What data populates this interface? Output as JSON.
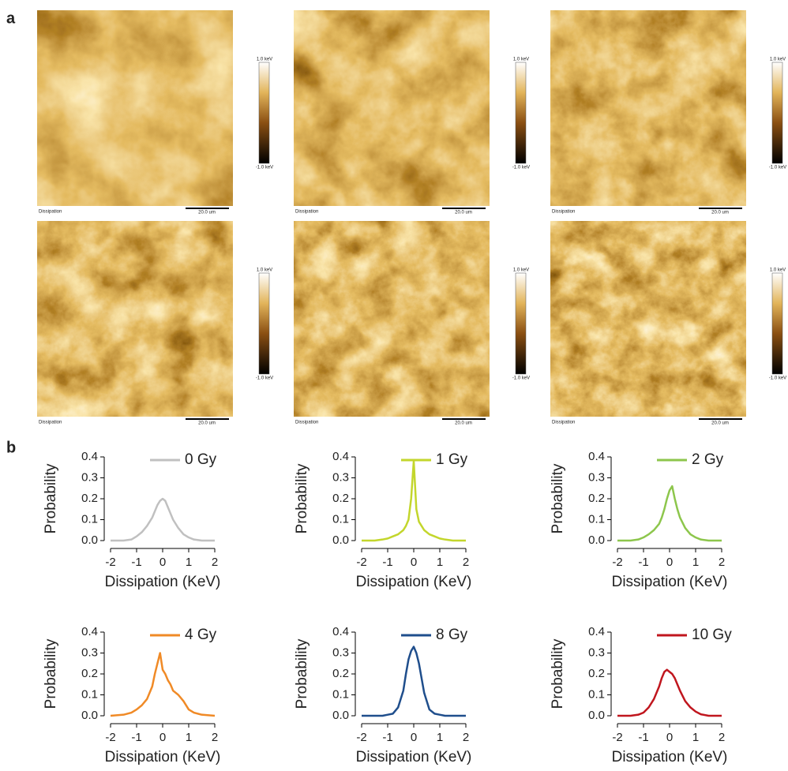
{
  "panel_labels": [
    "a",
    "b"
  ],
  "images": [
    {
      "caption": "Dissipation",
      "scale": "20.0 um",
      "colorbar_max": "1.0 keV",
      "colorbar_min": "-1.0 keV"
    },
    {
      "caption": "Dissipation",
      "scale": "20.0 um",
      "colorbar_max": "1.0 keV",
      "colorbar_min": "-1.0 keV"
    },
    {
      "caption": "Dissipation",
      "scale": "20.0 um",
      "colorbar_max": "1.0 keV",
      "colorbar_min": "-1.0 keV"
    },
    {
      "caption": "Dissipation",
      "scale": "20.0 um",
      "colorbar_max": "1.0 keV",
      "colorbar_min": "-1.0 keV"
    },
    {
      "caption": "Dissipation",
      "scale": "20.0 um",
      "colorbar_max": "1.0 keV",
      "colorbar_min": "-1.0 keV"
    },
    {
      "caption": "Dissipation",
      "scale": "20.0 um",
      "colorbar_max": "1.0 keV",
      "colorbar_min": "-1.0 keV"
    }
  ],
  "chart_data": [
    {
      "type": "line",
      "xlabel": "Dissipation (KeV)",
      "ylabel": "Probability",
      "x": [
        -2,
        -1.5,
        -1.2,
        -1,
        -0.8,
        -0.6,
        -0.4,
        -0.3,
        -0.2,
        -0.1,
        0,
        0.1,
        0.2,
        0.3,
        0.4,
        0.6,
        0.8,
        1,
        1.2,
        1.5,
        2
      ],
      "series": [
        {
          "name": "0 Gy",
          "color": "#c0c0c0",
          "values": [
            0,
            0,
            0.005,
            0.02,
            0.04,
            0.07,
            0.11,
            0.14,
            0.17,
            0.19,
            0.2,
            0.19,
            0.16,
            0.13,
            0.1,
            0.06,
            0.03,
            0.015,
            0.005,
            0,
            0
          ]
        }
      ],
      "xlim": [
        -2,
        2
      ],
      "xticks": [
        -2,
        -1,
        0,
        1,
        2
      ],
      "ylim": [
        0,
        0.4
      ],
      "yticks": [
        {
          "value": 0,
          "label": "0.0"
        },
        0.1,
        0.2,
        0.3,
        0.4
      ]
    },
    {
      "type": "line",
      "xlabel": "Dissipation (KeV)",
      "ylabel": "Probability",
      "x": [
        -2,
        -1.5,
        -1.2,
        -1,
        -0.8,
        -0.6,
        -0.4,
        -0.3,
        -0.2,
        -0.1,
        0,
        0.1,
        0.2,
        0.3,
        0.4,
        0.6,
        0.8,
        1,
        1.2,
        1.5,
        2
      ],
      "series": [
        {
          "name": "1 Gy",
          "color": "#c3d62c",
          "values": [
            0,
            0,
            0.005,
            0.01,
            0.02,
            0.03,
            0.05,
            0.07,
            0.1,
            0.2,
            0.38,
            0.15,
            0.09,
            0.07,
            0.05,
            0.03,
            0.02,
            0.01,
            0.005,
            0,
            0
          ]
        }
      ],
      "xlim": [
        -2,
        2
      ],
      "xticks": [
        -2,
        -1,
        0,
        1,
        2
      ],
      "ylim": [
        0,
        0.4
      ],
      "yticks": [
        {
          "value": 0,
          "label": "0.0"
        },
        0.1,
        0.2,
        0.3,
        0.4
      ]
    },
    {
      "type": "line",
      "xlabel": "Dissipation (KeV)",
      "ylabel": "Probability",
      "x": [
        -2,
        -1.5,
        -1.2,
        -1,
        -0.8,
        -0.6,
        -0.4,
        -0.3,
        -0.2,
        -0.1,
        0,
        0.1,
        0.2,
        0.3,
        0.4,
        0.6,
        0.8,
        1,
        1.2,
        1.5,
        2
      ],
      "series": [
        {
          "name": "2 Gy",
          "color": "#8dc64c",
          "values": [
            0,
            0,
            0.005,
            0.015,
            0.03,
            0.05,
            0.08,
            0.11,
            0.15,
            0.2,
            0.24,
            0.26,
            0.2,
            0.15,
            0.11,
            0.06,
            0.03,
            0.015,
            0.005,
            0,
            0
          ]
        }
      ],
      "xlim": [
        -2,
        2
      ],
      "xticks": [
        -2,
        -1,
        0,
        1,
        2
      ],
      "ylim": [
        0,
        0.4
      ],
      "yticks": [
        {
          "value": 0,
          "label": "0.0"
        },
        0.1,
        0.2,
        0.3,
        0.4
      ]
    },
    {
      "type": "line",
      "xlabel": "Dissipation (KeV)",
      "ylabel": "Probability",
      "x": [
        -2,
        -1.5,
        -1.2,
        -1,
        -0.8,
        -0.6,
        -0.4,
        -0.3,
        -0.2,
        -0.1,
        0,
        0.1,
        0.2,
        0.3,
        0.4,
        0.6,
        0.8,
        1,
        1.2,
        1.5,
        2
      ],
      "series": [
        {
          "name": "4 Gy",
          "color": "#f08a26",
          "values": [
            0,
            0.005,
            0.015,
            0.03,
            0.05,
            0.08,
            0.14,
            0.2,
            0.25,
            0.3,
            0.22,
            0.2,
            0.17,
            0.15,
            0.12,
            0.1,
            0.07,
            0.03,
            0.015,
            0.005,
            0
          ]
        }
      ],
      "xlim": [
        -2,
        2
      ],
      "xticks": [
        -2,
        -1,
        0,
        1,
        2
      ],
      "ylim": [
        0,
        0.4
      ],
      "yticks": [
        {
          "value": 0,
          "label": "0.0"
        },
        0.1,
        0.2,
        0.3,
        0.4
      ]
    },
    {
      "type": "line",
      "xlabel": "Dissipation (KeV)",
      "ylabel": "Probability",
      "x": [
        -2,
        -1.5,
        -1.2,
        -1,
        -0.8,
        -0.6,
        -0.4,
        -0.3,
        -0.2,
        -0.1,
        0,
        0.1,
        0.2,
        0.3,
        0.4,
        0.6,
        0.8,
        1,
        1.2,
        1.5,
        2
      ],
      "series": [
        {
          "name": "8 Gy",
          "color": "#1f4e8c",
          "values": [
            0,
            0,
            0,
            0.005,
            0.01,
            0.04,
            0.12,
            0.2,
            0.27,
            0.31,
            0.33,
            0.3,
            0.25,
            0.18,
            0.11,
            0.03,
            0.01,
            0.005,
            0,
            0,
            0
          ]
        }
      ],
      "xlim": [
        -2,
        2
      ],
      "xticks": [
        -2,
        -1,
        0,
        1,
        2
      ],
      "ylim": [
        0,
        0.4
      ],
      "yticks": [
        {
          "value": 0,
          "label": "0.0"
        },
        0.1,
        0.2,
        0.3,
        0.4
      ]
    },
    {
      "type": "line",
      "xlabel": "Dissipation (KeV)",
      "ylabel": "Probability",
      "x": [
        -2,
        -1.5,
        -1.2,
        -1,
        -0.8,
        -0.6,
        -0.4,
        -0.3,
        -0.2,
        -0.1,
        0,
        0.1,
        0.2,
        0.3,
        0.4,
        0.6,
        0.8,
        1,
        1.2,
        1.5,
        2
      ],
      "series": [
        {
          "name": "10 Gy",
          "color": "#c0161e",
          "values": [
            0,
            0,
            0.005,
            0.015,
            0.04,
            0.08,
            0.14,
            0.18,
            0.21,
            0.22,
            0.21,
            0.2,
            0.18,
            0.15,
            0.12,
            0.07,
            0.04,
            0.02,
            0.007,
            0,
            0
          ]
        }
      ],
      "xlim": [
        -2,
        2
      ],
      "xticks": [
        -2,
        -1,
        0,
        1,
        2
      ],
      "ylim": [
        0,
        0.4
      ],
      "yticks": [
        {
          "value": 0,
          "label": "0.0"
        },
        0.1,
        0.2,
        0.3,
        0.4
      ]
    }
  ]
}
